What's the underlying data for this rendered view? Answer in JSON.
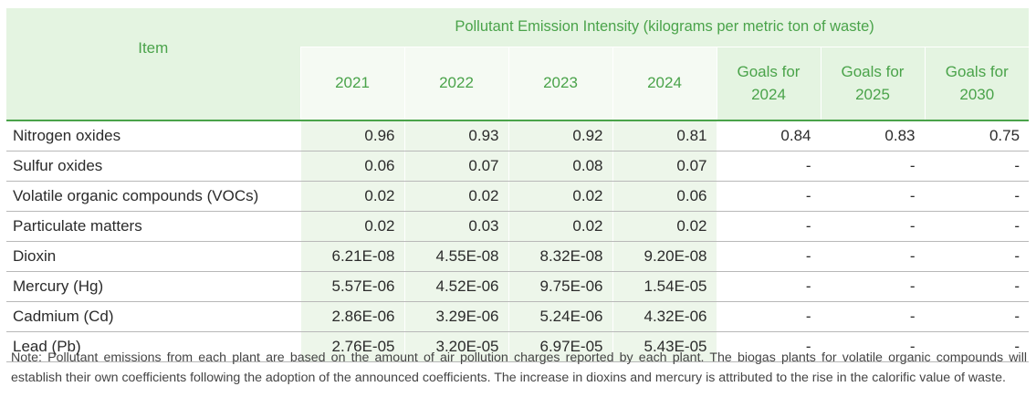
{
  "table": {
    "item_header": "Item",
    "group_header": "Pollutant Emission Intensity (kilograms per metric ton of waste)",
    "columns": [
      "2021",
      "2022",
      "2023",
      "2024",
      "Goals for 2024",
      "Goals for 2025",
      "Goals for 2030"
    ],
    "goal_labels": [
      {
        "line1": "Goals for",
        "line2": "2024"
      },
      {
        "line1": "Goals for",
        "line2": "2025"
      },
      {
        "line1": "Goals for",
        "line2": "2030"
      }
    ],
    "rows": [
      {
        "item": "Nitrogen oxides",
        "values": [
          "0.96",
          "0.93",
          "0.92",
          "0.81",
          "0.84",
          "0.83",
          "0.75"
        ]
      },
      {
        "item": "Sulfur oxides",
        "values": [
          "0.06",
          "0.07",
          "0.08",
          "0.07",
          "-",
          "-",
          "-"
        ]
      },
      {
        "item": "Volatile organic compounds (VOCs)",
        "values": [
          "0.02",
          "0.02",
          "0.02",
          "0.06",
          "-",
          "-",
          "-"
        ]
      },
      {
        "item": "Particulate matters",
        "values": [
          "0.02",
          "0.03",
          "0.02",
          "0.02",
          "-",
          "-",
          "-"
        ]
      },
      {
        "item": "Dioxin",
        "values": [
          "6.21E-08",
          "4.55E-08",
          "8.32E-08",
          "9.20E-08",
          "-",
          "-",
          "-"
        ]
      },
      {
        "item": "Mercury (Hg)",
        "values": [
          "5.57E-06",
          "4.52E-06",
          "9.75E-06",
          "1.54E-05",
          "-",
          "-",
          "-"
        ]
      },
      {
        "item": "Cadmium (Cd)",
        "values": [
          "2.86E-06",
          "3.29E-06",
          "5.24E-06",
          "4.32E-06",
          "-",
          "-",
          "-"
        ]
      },
      {
        "item": "Lead (Pb)",
        "values": [
          "2.76E-05",
          "3.20E-05",
          "6.97E-05",
          "5.43E-05",
          "-",
          "-",
          "-"
        ]
      }
    ]
  },
  "note": {
    "label": "Note:",
    "text": "Pollutant emissions from each plant are based on the amount of air pollution charges reported by each plant. The biogas plants for volatile organic compounds will establish their own coefficients following the adoption of the announced coefficients. The increase in dioxins and mercury is attributed to the rise in the calorific value of waste."
  },
  "colors": {
    "accent_green": "#4aa34a",
    "header_bg": "#e4f4e1",
    "year_column_bg": "#edf6ea"
  }
}
